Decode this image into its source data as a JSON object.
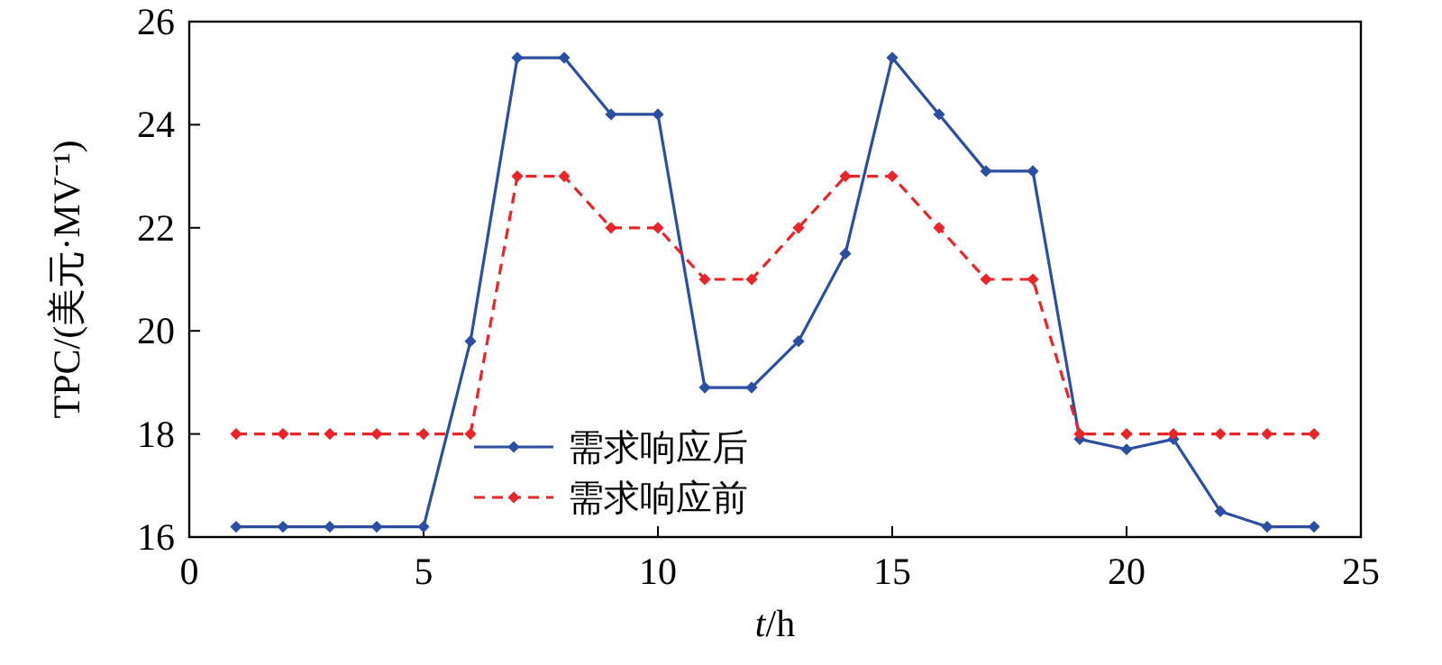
{
  "chart_data": {
    "type": "line",
    "xlabel": "t/h",
    "ylabel": "TPC/(美元·MV⁻¹)",
    "x": [
      1,
      2,
      3,
      4,
      5,
      6,
      7,
      8,
      9,
      10,
      11,
      12,
      13,
      14,
      15,
      16,
      17,
      18,
      19,
      20,
      21,
      22,
      23,
      24
    ],
    "series": [
      {
        "name": "需求响应后",
        "color": "#2b4ea2",
        "line_style": "solid",
        "values": [
          16.2,
          16.2,
          16.2,
          16.2,
          16.2,
          19.8,
          25.3,
          25.3,
          24.2,
          24.2,
          18.9,
          18.9,
          19.8,
          21.5,
          25.3,
          24.2,
          23.1,
          23.1,
          17.9,
          17.7,
          17.9,
          16.5,
          16.2,
          16.2
        ]
      },
      {
        "name": "需求响应前",
        "color": "#e8262a",
        "line_style": "dashed",
        "values": [
          18,
          18,
          18,
          18,
          18,
          18,
          23,
          23,
          22,
          22,
          21,
          21,
          22,
          23,
          23,
          22,
          21,
          21,
          18,
          18,
          18,
          18,
          18,
          18
        ]
      }
    ],
    "xlim": [
      0,
      25
    ],
    "xticks": [
      0,
      5,
      10,
      15,
      20,
      25
    ],
    "ylim": [
      16,
      26
    ],
    "yticks": [
      16,
      18,
      20,
      22,
      24,
      26
    ],
    "marker": "diamond",
    "legend": "bottom",
    "grid": false
  }
}
